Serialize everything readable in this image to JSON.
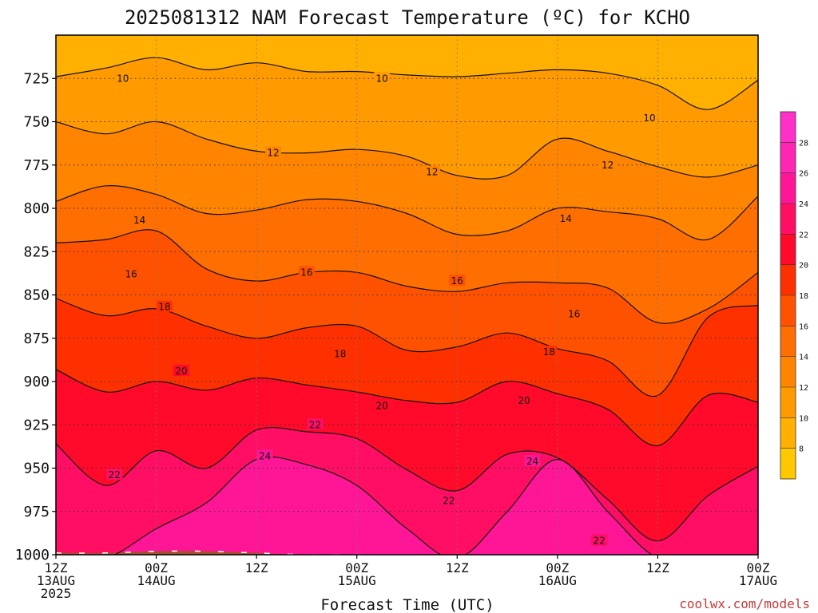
{
  "chart_data": {
    "type": "heatmap",
    "title": "2025081312 NAM Forecast Temperature (ºC) for KCHO",
    "xlabel": "Forecast Time (UTC)",
    "ylabel": "",
    "units": "°C",
    "x_ticks": [
      {
        "hours": 0,
        "line1": "12Z",
        "line2": "13AUG",
        "line3": "2025"
      },
      {
        "hours": 12,
        "line1": "00Z",
        "line2": "14AUG",
        "line3": ""
      },
      {
        "hours": 24,
        "line1": "12Z",
        "line2": "",
        "line3": ""
      },
      {
        "hours": 36,
        "line1": "00Z",
        "line2": "15AUG",
        "line3": ""
      },
      {
        "hours": 48,
        "line1": "12Z",
        "line2": "",
        "line3": ""
      },
      {
        "hours": 60,
        "line1": "00Z",
        "line2": "16AUG",
        "line3": ""
      },
      {
        "hours": 72,
        "line1": "12Z",
        "line2": "",
        "line3": ""
      },
      {
        "hours": 84,
        "line1": "00Z",
        "line2": "17AUG",
        "line3": ""
      }
    ],
    "x_range_hours": [
      0,
      84
    ],
    "y_ticks": [
      725,
      750,
      775,
      800,
      825,
      850,
      875,
      900,
      925,
      950,
      975,
      1000
    ],
    "y_range_hPa": [
      1000,
      700
    ],
    "grid": true,
    "colorbar": {
      "position": "right",
      "levels": [
        8,
        10,
        12,
        14,
        16,
        18,
        20,
        22,
        24,
        26,
        28
      ],
      "colors": [
        "#ffc800",
        "#ffb000",
        "#ff9a00",
        "#ff8400",
        "#ff6e00",
        "#ff5200",
        "#ff3000",
        "#ff0a2a",
        "#ff0e64",
        "#ff1696",
        "#ff26b4",
        "#ff30c8"
      ]
    },
    "hours": [
      0,
      6,
      12,
      18,
      24,
      30,
      36,
      42,
      48,
      54,
      60,
      66,
      72,
      78,
      84
    ],
    "contours": [
      {
        "level": 10,
        "label_at": [
          [
            8,
            725
          ],
          [
            39,
            725
          ],
          [
            71,
            748
          ]
        ],
        "pressure": [
          724,
          719,
          713,
          720,
          716,
          721,
          721,
          723,
          724,
          722,
          720,
          722,
          729,
          743,
          726
        ]
      },
      {
        "level": 12,
        "label_at": [
          [
            26,
            768
          ],
          [
            45,
            779
          ],
          [
            66,
            775
          ]
        ],
        "pressure": [
          750,
          757,
          750,
          760,
          767,
          768,
          766,
          770,
          781,
          781,
          760,
          767,
          776,
          782,
          775
        ]
      },
      {
        "level": 14,
        "label_at": [
          [
            10,
            807
          ],
          [
            61,
            806
          ]
        ],
        "pressure": [
          796,
          787,
          792,
          803,
          801,
          795,
          796,
          803,
          815,
          813,
          800,
          802,
          806,
          818,
          793
        ]
      },
      {
        "level": 16,
        "label_at": [
          [
            9,
            838
          ],
          [
            30,
            837
          ],
          [
            48,
            842
          ],
          [
            62,
            861
          ]
        ],
        "pressure": [
          820,
          818,
          813,
          835,
          842,
          837,
          837,
          845,
          848,
          843,
          843,
          846,
          866,
          858,
          837
        ]
      },
      {
        "level": 18,
        "label_at": [
          [
            13,
            857
          ],
          [
            34,
            884
          ],
          [
            59,
            883
          ]
        ],
        "pressure": [
          852,
          862,
          858,
          868,
          875,
          869,
          868,
          882,
          880,
          872,
          881,
          888,
          908,
          863,
          856
        ]
      },
      {
        "level": 20,
        "label_at": [
          [
            15,
            894
          ],
          [
            39,
            914
          ],
          [
            56,
            911
          ]
        ],
        "pressure": [
          893,
          906,
          900,
          905,
          898,
          902,
          906,
          911,
          912,
          900,
          907,
          916,
          937,
          908,
          912
        ]
      },
      {
        "level": 22,
        "label_at": [
          [
            7,
            954
          ],
          [
            31,
            925
          ],
          [
            47,
            969
          ],
          [
            65,
            992
          ]
        ],
        "pressure": [
          936,
          960,
          940,
          950,
          928,
          929,
          933,
          951,
          963,
          942,
          944,
          968,
          992,
          966,
          949
        ]
      },
      {
        "level": 24,
        "label_at": [
          [
            25,
            943
          ],
          [
            57,
            946
          ]
        ],
        "pressure": [
          1002,
          1002,
          985,
          970,
          945,
          948,
          960,
          985,
          1002,
          975,
          945,
          975,
          1002,
          1002,
          1002
        ]
      }
    ],
    "surface_pressure": [
      999,
      999,
      998,
      998,
      999,
      1000,
      1000,
      1001,
      1002,
      1002,
      1002,
      1003,
      1003,
      1003,
      1003
    ]
  },
  "credit": "coolwx.com/models"
}
